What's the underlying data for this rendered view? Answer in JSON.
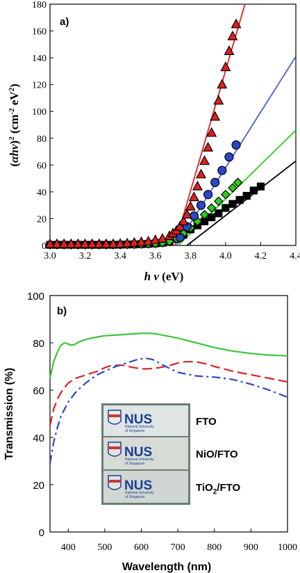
{
  "chart_data": [
    {
      "type": "scatter",
      "panel_label": "a)",
      "xlabel_main": "h",
      "xlabel_nu": "ν",
      "xlabel_unit": " (eV)",
      "ylabel_parts": {
        "open": "(",
        "alpha": "α",
        "hv": "hν",
        "close": ")",
        "sup2": "2",
        "unit": " (cm",
        "sup_m2": "-2",
        "ev": " eV",
        "sup2b": "2",
        "end": ")"
      },
      "xlim": [
        3.0,
        4.4
      ],
      "ylim": [
        0,
        180
      ],
      "xticks": [
        "3.0",
        "3.2",
        "3.4",
        "3.6",
        "3.8",
        "4.0",
        "4.2",
        "4.4"
      ],
      "yticks": [
        "0",
        "20",
        "40",
        "60",
        "80",
        "100",
        "120",
        "140",
        "160",
        "180"
      ],
      "xtick_values": [
        3.0,
        3.2,
        3.4,
        3.6,
        3.8,
        4.0,
        4.2,
        4.4
      ],
      "ytick_values": [
        0,
        20,
        40,
        60,
        80,
        100,
        120,
        140,
        160,
        180
      ],
      "series": [
        {
          "marker": "square",
          "color": "#000000",
          "fit_color": "#000000",
          "x": [
            3.0,
            3.04,
            3.08,
            3.12,
            3.16,
            3.2,
            3.24,
            3.28,
            3.32,
            3.36,
            3.4,
            3.44,
            3.48,
            3.52,
            3.56,
            3.6,
            3.64,
            3.68,
            3.72,
            3.76,
            3.8,
            3.84,
            3.88,
            3.92,
            3.96,
            4.0,
            4.04,
            4.08,
            4.12,
            4.16,
            4.2
          ],
          "y": [
            0.5,
            0.5,
            0.5,
            0.5,
            0.5,
            0.5,
            0.5,
            0.5,
            0.5,
            0.5,
            0.6,
            0.7,
            0.8,
            1.0,
            1.2,
            1.5,
            2,
            3,
            5,
            8,
            12,
            15,
            18,
            21,
            24,
            28,
            31,
            34,
            37,
            41,
            44
          ],
          "fit": [
            [
              3.78,
              0
            ],
            [
              4.4,
              63
            ]
          ]
        },
        {
          "marker": "diamond",
          "color": "#2ecc1a",
          "fit_color": "#2ecc1a",
          "x": [
            3.0,
            3.04,
            3.08,
            3.12,
            3.16,
            3.2,
            3.24,
            3.28,
            3.32,
            3.36,
            3.4,
            3.44,
            3.48,
            3.52,
            3.56,
            3.6,
            3.64,
            3.68,
            3.72,
            3.76,
            3.8,
            3.84,
            3.88,
            3.92,
            3.96,
            4.0,
            4.04,
            4.07
          ],
          "y": [
            0.5,
            0.5,
            0.5,
            0.5,
            0.5,
            0.5,
            0.5,
            0.5,
            0.5,
            0.5,
            0.6,
            0.7,
            0.8,
            1.0,
            1.2,
            1.5,
            2,
            3,
            5,
            9,
            13,
            18,
            23,
            28,
            33,
            38,
            43,
            47
          ],
          "fit": [
            [
              3.73,
              0
            ],
            [
              4.4,
              86
            ]
          ]
        },
        {
          "marker": "circle",
          "color": "#2b46c6",
          "fit_color": "#4a5fd0",
          "x": [
            3.74,
            3.78,
            3.82,
            3.86,
            3.9,
            3.94,
            3.98,
            4.02,
            4.06
          ],
          "y": [
            6,
            14,
            22,
            30,
            38,
            47,
            56,
            66,
            75
          ],
          "fit": [
            [
              3.72,
              0
            ],
            [
              4.4,
              141
            ]
          ]
        },
        {
          "marker": "triangle",
          "color": "#e02020",
          "fit_color": "#e02020",
          "x": [
            3.0,
            3.04,
            3.08,
            3.12,
            3.16,
            3.2,
            3.24,
            3.28,
            3.32,
            3.36,
            3.4,
            3.44,
            3.48,
            3.52,
            3.56,
            3.6,
            3.64,
            3.68,
            3.7,
            3.72,
            3.74,
            3.76,
            3.78,
            3.8,
            3.82,
            3.84,
            3.86,
            3.88,
            3.9,
            3.92,
            3.94,
            3.96,
            3.98,
            4.0,
            4.02,
            4.04,
            4.06
          ],
          "y": [
            1,
            1,
            1,
            1,
            1,
            1,
            1,
            1,
            1,
            1,
            1.2,
            1.5,
            2,
            2.5,
            3,
            4,
            5,
            7,
            9,
            11,
            14,
            18,
            23,
            29,
            36,
            44,
            53,
            63,
            73,
            84,
            96,
            108,
            120,
            133,
            145,
            156,
            165
          ],
          "fit": [
            [
              3.71,
              0
            ],
            [
              4.11,
              180
            ]
          ]
        }
      ]
    },
    {
      "type": "line",
      "panel_label": "b)",
      "xlabel": "Wavelength (nm)",
      "ylabel": "Transmission (%)",
      "xlim": [
        350,
        1000
      ],
      "ylim": [
        0,
        100
      ],
      "xticks": [
        "400",
        "500",
        "600",
        "700",
        "800",
        "900",
        "1000"
      ],
      "yticks": [
        "0",
        "20",
        "40",
        "60",
        "80",
        "100"
      ],
      "xtick_values": [
        400,
        500,
        600,
        700,
        800,
        900,
        1000
      ],
      "ytick_values": [
        0,
        20,
        40,
        60,
        80,
        100
      ],
      "series": [
        {
          "color": "#3cc63c",
          "dash": "solid",
          "x": [
            350,
            360,
            370,
            380,
            390,
            400,
            410,
            420,
            430,
            450,
            480,
            500,
            550,
            600,
            630,
            650,
            700,
            750,
            800,
            850,
            900,
            950,
            1000
          ],
          "y": [
            65,
            72,
            76,
            79,
            80,
            79.5,
            79,
            79.5,
            80.5,
            81.5,
            82.5,
            83,
            83.5,
            84,
            84,
            83.5,
            82,
            80,
            78,
            76.5,
            75.5,
            74.8,
            74.5
          ]
        },
        {
          "color": "#e02020",
          "dash": "dash",
          "x": [
            350,
            360,
            370,
            380,
            390,
            400,
            420,
            440,
            460,
            480,
            500,
            520,
            550,
            580,
            600,
            620,
            650,
            680,
            700,
            720,
            750,
            780,
            800,
            850,
            900,
            950,
            1000
          ],
          "y": [
            45,
            52,
            56,
            59,
            61,
            63,
            65,
            66,
            67,
            68,
            69.5,
            70.5,
            70.5,
            69.5,
            69,
            69,
            69.5,
            70.5,
            71.5,
            72,
            72,
            71,
            70,
            68,
            66.5,
            65,
            63.5
          ]
        },
        {
          "color": "#2b46c6",
          "dash": "dashdot",
          "x": [
            350,
            360,
            370,
            380,
            390,
            400,
            420,
            440,
            460,
            480,
            500,
            530,
            560,
            590,
            610,
            630,
            660,
            700,
            750,
            800,
            850,
            900,
            950,
            1000
          ],
          "y": [
            29,
            38,
            44,
            49,
            52,
            55,
            59,
            62,
            64.5,
            66.5,
            68,
            70,
            71.5,
            73,
            73.5,
            73,
            70.5,
            67.5,
            66,
            65.5,
            64.5,
            62.5,
            60,
            57
          ]
        }
      ],
      "inset": {
        "logo_text": "NUS",
        "logo_sub_1": "National University",
        "logo_sub_2": "of Singapore",
        "labels": [
          "FTO",
          "NiO/FTO",
          "TiO"
        ],
        "tio_sub": "2",
        "tio_rest": "/FTO"
      }
    }
  ]
}
